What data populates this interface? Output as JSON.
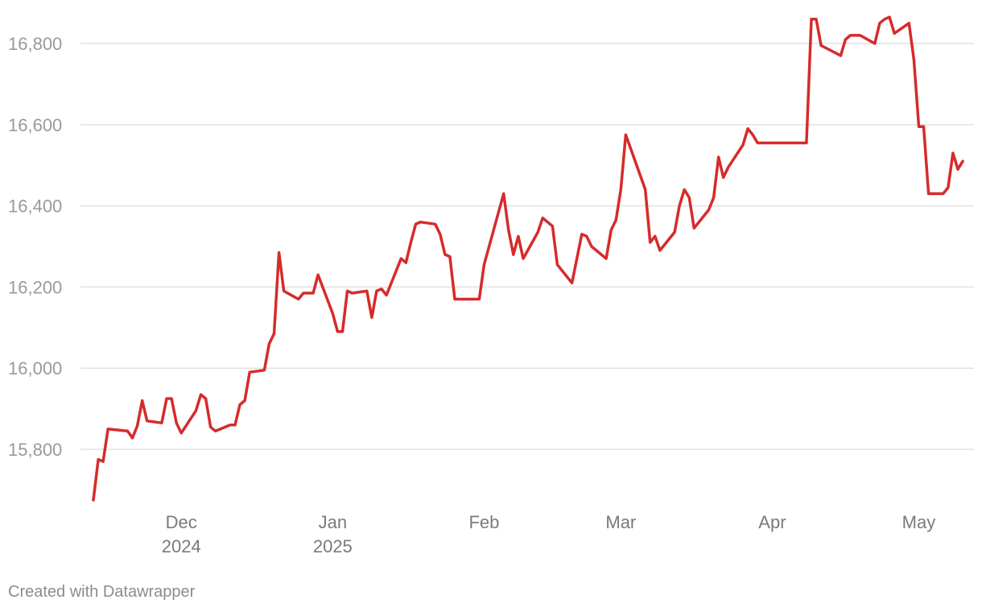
{
  "chart_data": {
    "type": "line",
    "title": "",
    "xlabel": "",
    "ylabel": "",
    "ylim": [
      15650,
      16880
    ],
    "xlim": [
      "2024-11-13",
      "2025-05-09"
    ],
    "yticks": [
      15800,
      16000,
      16200,
      16400,
      16600,
      16800
    ],
    "ytick_labels": [
      "15,800",
      "16,000",
      "16,200",
      "16,400",
      "16,600",
      "16,800"
    ],
    "xticks": [
      {
        "date": "2024-12-01",
        "label": "Dec",
        "sublabel": "2024"
      },
      {
        "date": "2025-01-01",
        "label": "Jan",
        "sublabel": "2025"
      },
      {
        "date": "2025-02-01",
        "label": "Feb",
        "sublabel": ""
      },
      {
        "date": "2025-03-01",
        "label": "Mar",
        "sublabel": ""
      },
      {
        "date": "2025-04-01",
        "label": "Apr",
        "sublabel": ""
      },
      {
        "date": "2025-05-01",
        "label": "May",
        "sublabel": ""
      }
    ],
    "grid": true,
    "legend": "none",
    "series": [
      {
        "color": "#d62b2b",
        "points": [
          [
            "2024-11-13",
            15675
          ],
          [
            "2024-11-14",
            15775
          ],
          [
            "2024-11-15",
            15770
          ],
          [
            "2024-11-16",
            15850
          ],
          [
            "2024-11-20",
            15845
          ],
          [
            "2024-11-21",
            15828
          ],
          [
            "2024-11-22",
            15858
          ],
          [
            "2024-11-23",
            15920
          ],
          [
            "2024-11-24",
            15870
          ],
          [
            "2024-11-27",
            15865
          ],
          [
            "2024-11-28",
            15925
          ],
          [
            "2024-11-29",
            15925
          ],
          [
            "2024-11-30",
            15865
          ],
          [
            "2024-12-01",
            15840
          ],
          [
            "2024-12-04",
            15895
          ],
          [
            "2024-12-05",
            15935
          ],
          [
            "2024-12-06",
            15925
          ],
          [
            "2024-12-07",
            15855
          ],
          [
            "2024-12-08",
            15845
          ],
          [
            "2024-12-11",
            15860
          ],
          [
            "2024-12-12",
            15860
          ],
          [
            "2024-12-13",
            15910
          ],
          [
            "2024-12-14",
            15920
          ],
          [
            "2024-12-15",
            15990
          ],
          [
            "2024-12-18",
            15995
          ],
          [
            "2024-12-19",
            16060
          ],
          [
            "2024-12-20",
            16085
          ],
          [
            "2024-12-21",
            16285
          ],
          [
            "2024-12-22",
            16190
          ],
          [
            "2024-12-25",
            16170
          ],
          [
            "2024-12-26",
            16185
          ],
          [
            "2024-12-28",
            16185
          ],
          [
            "2024-12-29",
            16230
          ],
          [
            "2025-01-01",
            16135
          ],
          [
            "2025-01-02",
            16090
          ],
          [
            "2025-01-03",
            16090
          ],
          [
            "2025-01-04",
            16190
          ],
          [
            "2025-01-05",
            16185
          ],
          [
            "2025-01-08",
            16190
          ],
          [
            "2025-01-09",
            16125
          ],
          [
            "2025-01-10",
            16190
          ],
          [
            "2025-01-11",
            16195
          ],
          [
            "2025-01-12",
            16180
          ],
          [
            "2025-01-15",
            16270
          ],
          [
            "2025-01-16",
            16260
          ],
          [
            "2025-01-17",
            16310
          ],
          [
            "2025-01-18",
            16355
          ],
          [
            "2025-01-19",
            16360
          ],
          [
            "2025-01-22",
            16355
          ],
          [
            "2025-01-23",
            16330
          ],
          [
            "2025-01-24",
            16280
          ],
          [
            "2025-01-25",
            16275
          ],
          [
            "2025-01-26",
            16170
          ],
          [
            "2025-01-31",
            16170
          ],
          [
            "2025-02-01",
            16255
          ],
          [
            "2025-02-05",
            16430
          ],
          [
            "2025-02-06",
            16340
          ],
          [
            "2025-02-07",
            16280
          ],
          [
            "2025-02-08",
            16325
          ],
          [
            "2025-02-09",
            16270
          ],
          [
            "2025-02-12",
            16335
          ],
          [
            "2025-02-13",
            16370
          ],
          [
            "2025-02-15",
            16350
          ],
          [
            "2025-02-16",
            16255
          ],
          [
            "2025-02-19",
            16210
          ],
          [
            "2025-02-21",
            16330
          ],
          [
            "2025-02-22",
            16325
          ],
          [
            "2025-02-23",
            16300
          ],
          [
            "2025-02-26",
            16270
          ],
          [
            "2025-02-27",
            16340
          ],
          [
            "2025-02-28",
            16365
          ],
          [
            "2025-03-01",
            16440
          ],
          [
            "2025-03-02",
            16575
          ],
          [
            "2025-03-06",
            16440
          ],
          [
            "2025-03-07",
            16310
          ],
          [
            "2025-03-08",
            16325
          ],
          [
            "2025-03-09",
            16290
          ],
          [
            "2025-03-12",
            16335
          ],
          [
            "2025-03-13",
            16400
          ],
          [
            "2025-03-14",
            16440
          ],
          [
            "2025-03-15",
            16420
          ],
          [
            "2025-03-16",
            16345
          ],
          [
            "2025-03-19",
            16390
          ],
          [
            "2025-03-20",
            16420
          ],
          [
            "2025-03-21",
            16520
          ],
          [
            "2025-03-22",
            16470
          ],
          [
            "2025-03-23",
            16495
          ],
          [
            "2025-03-26",
            16550
          ],
          [
            "2025-03-27",
            16590
          ],
          [
            "2025-03-28",
            16575
          ],
          [
            "2025-03-29",
            16555
          ],
          [
            "2025-04-08",
            16555
          ],
          [
            "2025-04-09",
            16860
          ],
          [
            "2025-04-10",
            16860
          ],
          [
            "2025-04-11",
            16795
          ],
          [
            "2025-04-15",
            16770
          ],
          [
            "2025-04-16",
            16810
          ],
          [
            "2025-04-17",
            16820
          ],
          [
            "2025-04-19",
            16820
          ],
          [
            "2025-04-22",
            16800
          ],
          [
            "2025-04-23",
            16850
          ],
          [
            "2025-04-24",
            16860
          ],
          [
            "2025-04-25",
            16865
          ],
          [
            "2025-04-26",
            16825
          ],
          [
            "2025-04-29",
            16850
          ],
          [
            "2025-04-30",
            16760
          ],
          [
            "2025-05-01",
            16595
          ],
          [
            "2025-05-02",
            16595
          ],
          [
            "2025-05-03",
            16430
          ],
          [
            "2025-05-06",
            16430
          ],
          [
            "2025-05-07",
            16445
          ],
          [
            "2025-05-08",
            16530
          ],
          [
            "2025-05-09",
            16490
          ],
          [
            "2025-05-10",
            16510
          ]
        ]
      }
    ]
  },
  "footer": {
    "credit": "Created with Datawrapper"
  }
}
